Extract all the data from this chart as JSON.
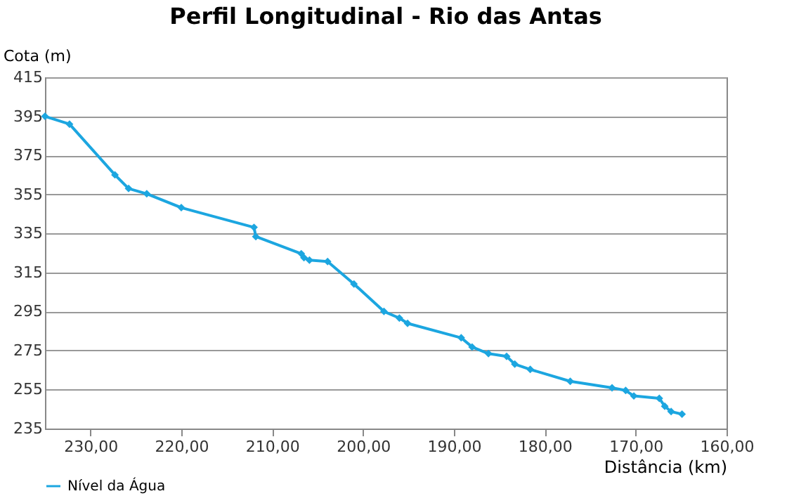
{
  "chart_data": {
    "type": "line",
    "title": "Perfil Longitudinal - Rio das Antas",
    "xlabel": "Distância (km)",
    "ylabel": "Cota (m)",
    "x": [
      235,
      232.3,
      227.3,
      225.8,
      223.8,
      220.0,
      212.0,
      211.8,
      206.8,
      206.5,
      205.9,
      203.9,
      201.0,
      197.7,
      196.0,
      195.1,
      189.2,
      188.0,
      186.2,
      184.2,
      183.3,
      181.6,
      177.2,
      172.6,
      171.1,
      170.2,
      167.4,
      166.8,
      166.1,
      164.9
    ],
    "series": [
      {
        "name": "Nível da Água",
        "color": "#1ca6e0",
        "values": [
          395,
          391,
          365,
          358,
          355.3,
          348.2,
          338.1,
          333.4,
          324.6,
          322.6,
          321.3,
          320.6,
          309.1,
          295,
          291.6,
          288.9,
          281.5,
          276.8,
          273.4,
          272,
          268,
          265.3,
          259.2,
          255.9,
          254.5,
          251.7,
          250.5,
          246.4,
          243.7,
          242.4
        ]
      }
    ],
    "xlim": [
      235,
      160
    ],
    "ylim": [
      235,
      415
    ],
    "xticks": [
      {
        "value": 230,
        "label": "230,00"
      },
      {
        "value": 220,
        "label": "220,00"
      },
      {
        "value": 210,
        "label": "210,00"
      },
      {
        "value": 200,
        "label": "200,00"
      },
      {
        "value": 190,
        "label": "190,00"
      },
      {
        "value": 180,
        "label": "180,00"
      },
      {
        "value": 170,
        "label": "170,00"
      },
      {
        "value": 160,
        "label": "160,00"
      }
    ],
    "yticks": [
      235,
      255,
      275,
      295,
      315,
      335,
      355,
      375,
      395,
      415
    ],
    "grid": "y",
    "legend": "bottom",
    "marker": "diamond",
    "line_style": "solid"
  }
}
